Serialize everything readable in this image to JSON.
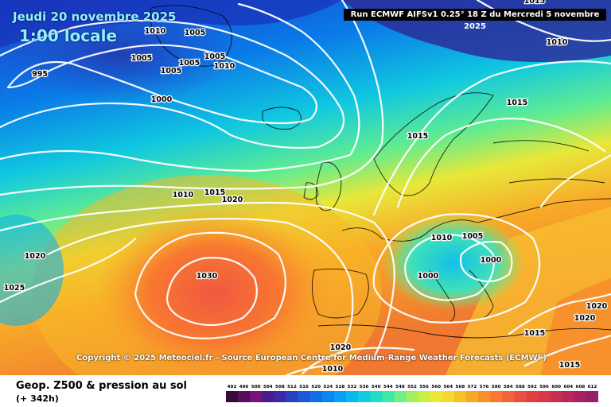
{
  "header": {
    "date": "Jeudi 20 novembre 2025",
    "local_time": "1:00 locale",
    "run_info": "Run ECMWF AIFSv1 0.25° 18 Z du Mercredi 5 novembre 2025"
  },
  "copyright": "Copyright © 2025 Meteociel.fr - Source European Centre for Medium-Range Weather Forecasts (ECMWF)",
  "footer": {
    "title": "Geop. Z500 & pression au sol",
    "subtitle": "(+ 342h)"
  },
  "legend": {
    "values": [
      "492",
      "496",
      "500",
      "504",
      "508",
      "512",
      "516",
      "520",
      "524",
      "528",
      "532",
      "536",
      "540",
      "544",
      "548",
      "552",
      "556",
      "560",
      "564",
      "568",
      "572",
      "576",
      "580",
      "584",
      "588",
      "592",
      "596",
      "600",
      "604",
      "608",
      "612"
    ],
    "colors": [
      "#3a0a3a",
      "#5a0e5a",
      "#7a127a",
      "#4b1a8c",
      "#3a2aa8",
      "#2a40c0",
      "#1a58d8",
      "#1070e8",
      "#0a88f0",
      "#08a0f4",
      "#08b8f0",
      "#10cce0",
      "#20dcc8",
      "#40e8a8",
      "#70f080",
      "#a0f060",
      "#c8f040",
      "#e8e838",
      "#f8d830",
      "#f8c028",
      "#f8a828",
      "#f89028",
      "#f87830",
      "#f06438",
      "#e85040",
      "#e04040",
      "#d83848",
      "#c83050",
      "#b82858",
      "#a82060",
      "#982068"
    ]
  },
  "isobars": [
    {
      "label": "995"
    },
    {
      "label": "1000"
    },
    {
      "label": "1005"
    },
    {
      "label": "1005"
    },
    {
      "label": "1005"
    },
    {
      "label": "1005"
    },
    {
      "label": "1005"
    },
    {
      "label": "1010"
    },
    {
      "label": "1010"
    },
    {
      "label": "1010"
    },
    {
      "label": "1015"
    },
    {
      "label": "1020"
    },
    {
      "label": "1030"
    },
    {
      "label": "1020"
    },
    {
      "label": "1025"
    },
    {
      "label": "1015"
    },
    {
      "label": "1015"
    },
    {
      "label": "1010"
    },
    {
      "label": "1010"
    },
    {
      "label": "1005"
    },
    {
      "label": "1000"
    },
    {
      "label": "1000"
    },
    {
      "label": "1020"
    },
    {
      "label": "1010"
    },
    {
      "label": "1015"
    },
    {
      "label": "1020"
    },
    {
      "label": "1020"
    },
    {
      "label": "1015"
    },
    {
      "label": "1015"
    },
    {
      "label": "1010"
    },
    {
      "label": "1015"
    }
  ]
}
